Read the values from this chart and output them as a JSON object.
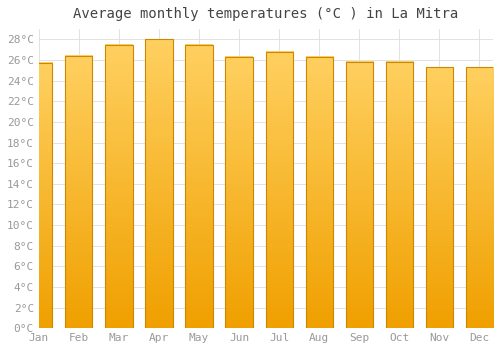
{
  "title": "Average monthly temperatures (°C ) in La Mitra",
  "months": [
    "Jan",
    "Feb",
    "Mar",
    "Apr",
    "May",
    "Jun",
    "Jul",
    "Aug",
    "Sep",
    "Oct",
    "Nov",
    "Dec"
  ],
  "values": [
    25.7,
    26.4,
    27.5,
    28.0,
    27.5,
    26.3,
    26.8,
    26.3,
    25.8,
    25.8,
    25.3,
    25.3
  ],
  "bar_color_light": "#FFD060",
  "bar_color_dark": "#F0A000",
  "bar_edge_color": "#CC8800",
  "background_color": "#FFFFFF",
  "grid_color": "#DDDDDD",
  "title_color": "#444444",
  "tick_color": "#999999",
  "ylim": [
    0,
    29
  ],
  "yticks": [
    0,
    2,
    4,
    6,
    8,
    10,
    12,
    14,
    16,
    18,
    20,
    22,
    24,
    26,
    28
  ],
  "title_fontsize": 10,
  "tick_fontsize": 8
}
